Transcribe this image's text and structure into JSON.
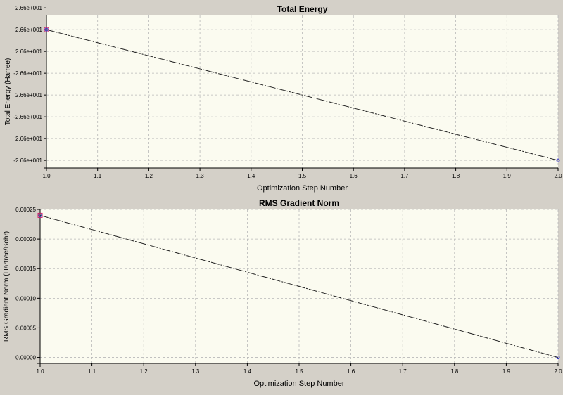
{
  "chart_data": [
    {
      "type": "line",
      "title": "Total Energy",
      "xlabel": "Optimization Step Number",
      "ylabel": "Total Energy (Harree)",
      "x": [
        1.0,
        2.0
      ],
      "series": [
        {
          "values": [
            6.0,
            0.0
          ]
        }
      ],
      "xlim": [
        1.0,
        2.0
      ],
      "ylim": [
        -0.35,
        6.65
      ],
      "xticks": [
        1.0,
        1.1,
        1.2,
        1.3,
        1.4,
        1.5,
        1.6,
        1.7,
        1.8,
        1.9,
        2.0
      ],
      "xtick_labels": [
        "1.0",
        "1.1",
        "1.2",
        "1.3",
        "1.4",
        "1.5",
        "1.6",
        "1.7",
        "1.8",
        "1.9",
        "2.0"
      ],
      "yticks": [
        0,
        1,
        2,
        3,
        4,
        5,
        6,
        7
      ],
      "ytick_labels": [
        "-2.66e+001",
        "2.66e+001",
        "-2.66e+001",
        "2.66e+001",
        "-2.66e+001",
        "2.66e+001",
        "2.66e+001",
        "2.66e+001"
      ],
      "grid": true,
      "colors": {
        "plot_bg": "#fbfbf0",
        "line": "#222222",
        "marker": "#3333cc",
        "first_marker": "#cc2266"
      }
    },
    {
      "type": "line",
      "title": "RMS Gradient Norm",
      "xlabel": "Optimization Step Number",
      "ylabel": "RMS Gradient Norm (Hartree/Bohr)",
      "x": [
        1.0,
        2.0
      ],
      "series": [
        {
          "values": [
            0.00024,
            0.0
          ]
        }
      ],
      "xlim": [
        1.0,
        2.0
      ],
      "ylim": [
        -1e-05,
        0.00025
      ],
      "xticks": [
        1.0,
        1.1,
        1.2,
        1.3,
        1.4,
        1.5,
        1.6,
        1.7,
        1.8,
        1.9,
        2.0
      ],
      "xtick_labels": [
        "1.0",
        "1.1",
        "1.2",
        "1.3",
        "1.4",
        "1.5",
        "1.6",
        "1.7",
        "1.8",
        "1.9",
        "2.0"
      ],
      "yticks": [
        0,
        5e-05,
        0.0001,
        0.00015,
        0.0002,
        0.00025
      ],
      "ytick_labels": [
        "0.00000",
        "0.00005",
        "0.00010",
        "0.00015",
        "0.00020",
        "0.00025"
      ],
      "grid": true,
      "colors": {
        "plot_bg": "#fbfbf0",
        "line": "#222222",
        "marker": "#3333cc",
        "first_marker": "#cc2266"
      }
    }
  ]
}
